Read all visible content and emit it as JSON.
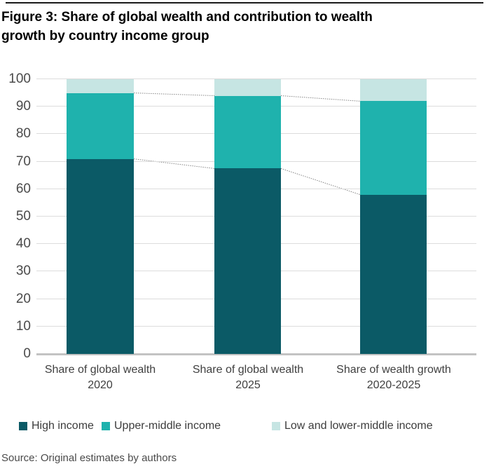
{
  "figure": {
    "title_line1": "Figure 3: Share of global wealth and contribution to wealth",
    "title_line2": "growth by country income group",
    "source": "Source: Original estimates by authors"
  },
  "chart_data": {
    "type": "bar",
    "stacked": true,
    "title": "Figure 3: Share of global wealth and contribution to wealth growth by country income group",
    "categories": [
      "Share of global wealth\n2020",
      "Share of global wealth\n2025",
      "Share of wealth growth\n2020-2025"
    ],
    "series": [
      {
        "name": "High income",
        "color": "#0b5a66",
        "values": [
          71,
          67.5,
          58
        ]
      },
      {
        "name": "Upper-middle income",
        "color": "#1fb2ad",
        "values": [
          24,
          26.5,
          34
        ]
      },
      {
        "name": "Low and lower-middle income",
        "color": "#c6e5e3",
        "values": [
          5,
          6,
          8
        ]
      }
    ],
    "xlabel": "",
    "ylabel": "",
    "ylim": [
      0,
      100
    ],
    "ytick_step": 10,
    "yticks": [
      0,
      10,
      20,
      30,
      40,
      50,
      60,
      70,
      80,
      90,
      100
    ],
    "grid": true,
    "legend_position": "bottom",
    "connectors": "dotted lines join segment boundaries of adjacent bars",
    "colors": {
      "gridline": "#dcdcdc",
      "baseline": "#c3c3c3",
      "connector": "#888888",
      "axis_text": "#4a4a4a"
    }
  }
}
